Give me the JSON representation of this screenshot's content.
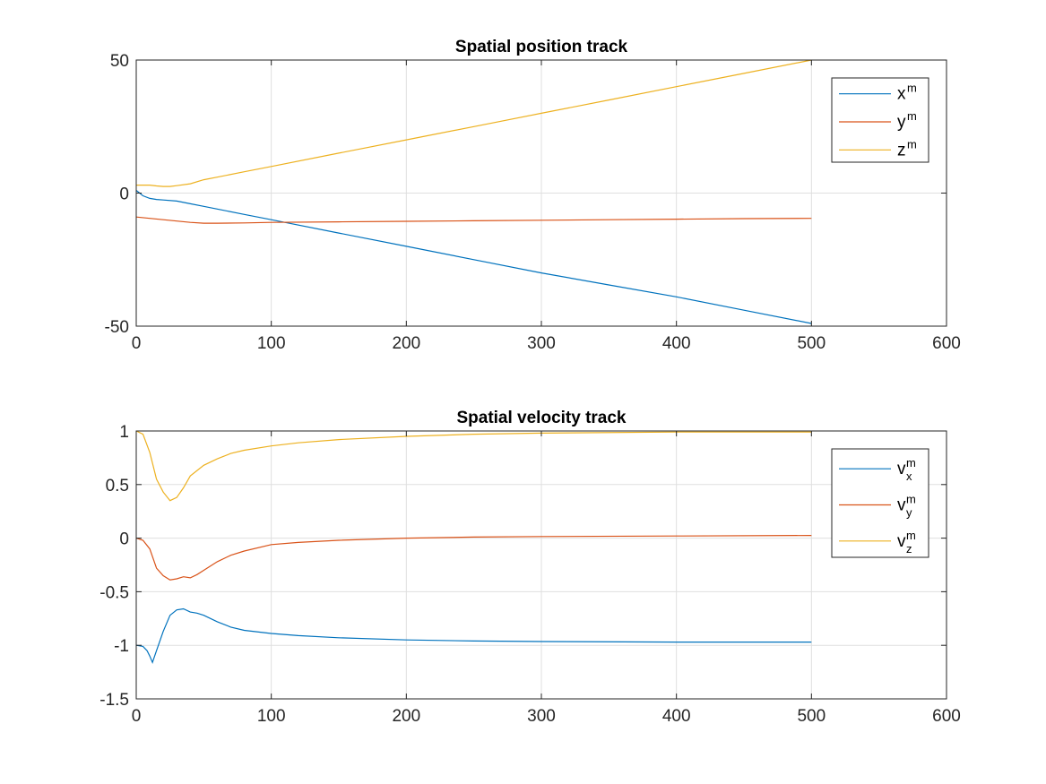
{
  "chart_data": [
    {
      "type": "line",
      "title": "Spatial position track",
      "xlabel": "",
      "ylabel": "",
      "xlim": [
        0,
        600
      ],
      "ylim": [
        -50,
        50
      ],
      "xticks": [
        0,
        100,
        200,
        300,
        400,
        500,
        600
      ],
      "yticks": [
        -50,
        0,
        50
      ],
      "xtick_labels": [
        "0",
        "100",
        "200",
        "300",
        "400",
        "500",
        "600"
      ],
      "ytick_labels": [
        "-50",
        "0",
        "50"
      ],
      "grid": true,
      "legend_placement": "top-right",
      "series": [
        {
          "name": "x",
          "sup": "m",
          "sub": "",
          "color": "#0072BD",
          "x": [
            0,
            5,
            10,
            15,
            20,
            30,
            40,
            50,
            60,
            80,
            100,
            150,
            200,
            250,
            300,
            350,
            400,
            450,
            500
          ],
          "y": [
            1,
            -1,
            -2,
            -2.4,
            -2.6,
            -3,
            -4,
            -5,
            -6,
            -8,
            -10,
            -15,
            -20,
            -25,
            -30,
            -34.5,
            -39,
            -44,
            -49
          ]
        },
        {
          "name": "y",
          "sup": "m",
          "sub": "",
          "color": "#D95319",
          "x": [
            0,
            10,
            20,
            30,
            40,
            50,
            60,
            80,
            100,
            150,
            200,
            250,
            300,
            350,
            400,
            450,
            500
          ],
          "y": [
            -9,
            -9.5,
            -10,
            -10.5,
            -11,
            -11.3,
            -11.3,
            -11.2,
            -11,
            -10.8,
            -10.6,
            -10.4,
            -10.2,
            -10,
            -9.8,
            -9.6,
            -9.5
          ]
        },
        {
          "name": "z",
          "sup": "m",
          "sub": "",
          "color": "#EDB120",
          "x": [
            0,
            5,
            10,
            15,
            20,
            25,
            30,
            40,
            50,
            60,
            80,
            100,
            150,
            200,
            250,
            300,
            350,
            400,
            450,
            500
          ],
          "y": [
            3,
            3,
            3,
            2.7,
            2.5,
            2.5,
            2.8,
            3.5,
            5,
            6,
            8,
            10,
            15,
            20,
            25,
            30,
            35,
            40,
            45,
            50
          ]
        }
      ]
    },
    {
      "type": "line",
      "title": "Spatial velocity track",
      "xlabel": "",
      "ylabel": "",
      "xlim": [
        0,
        600
      ],
      "ylim": [
        -1.5,
        1
      ],
      "xticks": [
        0,
        100,
        200,
        300,
        400,
        500,
        600
      ],
      "yticks": [
        -1.5,
        -1,
        -0.5,
        0,
        0.5,
        1
      ],
      "xtick_labels": [
        "0",
        "100",
        "200",
        "300",
        "400",
        "500",
        "600"
      ],
      "ytick_labels": [
        "-1.5",
        "-1",
        "-0.5",
        "0",
        "0.5",
        "1"
      ],
      "grid": true,
      "legend_placement": "top-right",
      "series": [
        {
          "name": "v",
          "sup": "m",
          "sub": "x",
          "color": "#0072BD",
          "x": [
            0,
            5,
            8,
            10,
            12,
            15,
            20,
            25,
            30,
            35,
            40,
            45,
            50,
            60,
            70,
            80,
            100,
            120,
            150,
            200,
            250,
            300,
            400,
            500
          ],
          "y": [
            -1,
            -1.01,
            -1.05,
            -1.1,
            -1.16,
            -1.05,
            -0.87,
            -0.72,
            -0.67,
            -0.66,
            -0.69,
            -0.7,
            -0.72,
            -0.78,
            -0.83,
            -0.86,
            -0.89,
            -0.91,
            -0.93,
            -0.95,
            -0.96,
            -0.965,
            -0.97,
            -0.97
          ]
        },
        {
          "name": "v",
          "sup": "m",
          "sub": "y",
          "color": "#D95319",
          "x": [
            0,
            5,
            10,
            15,
            20,
            25,
            30,
            35,
            40,
            45,
            50,
            60,
            70,
            80,
            100,
            120,
            150,
            200,
            250,
            300,
            400,
            500
          ],
          "y": [
            0,
            -0.02,
            -0.1,
            -0.28,
            -0.35,
            -0.39,
            -0.38,
            -0.36,
            -0.37,
            -0.34,
            -0.3,
            -0.22,
            -0.16,
            -0.12,
            -0.06,
            -0.04,
            -0.02,
            0,
            0.01,
            0.015,
            0.02,
            0.025
          ]
        },
        {
          "name": "v",
          "sup": "m",
          "sub": "z",
          "color": "#EDB120",
          "x": [
            0,
            5,
            10,
            15,
            20,
            25,
            30,
            35,
            40,
            50,
            60,
            70,
            80,
            100,
            120,
            150,
            200,
            250,
            300,
            400,
            500
          ],
          "y": [
            1,
            0.97,
            0.8,
            0.55,
            0.43,
            0.35,
            0.38,
            0.47,
            0.58,
            0.68,
            0.74,
            0.79,
            0.82,
            0.86,
            0.89,
            0.92,
            0.95,
            0.97,
            0.98,
            0.99,
            0.99
          ]
        }
      ]
    }
  ]
}
